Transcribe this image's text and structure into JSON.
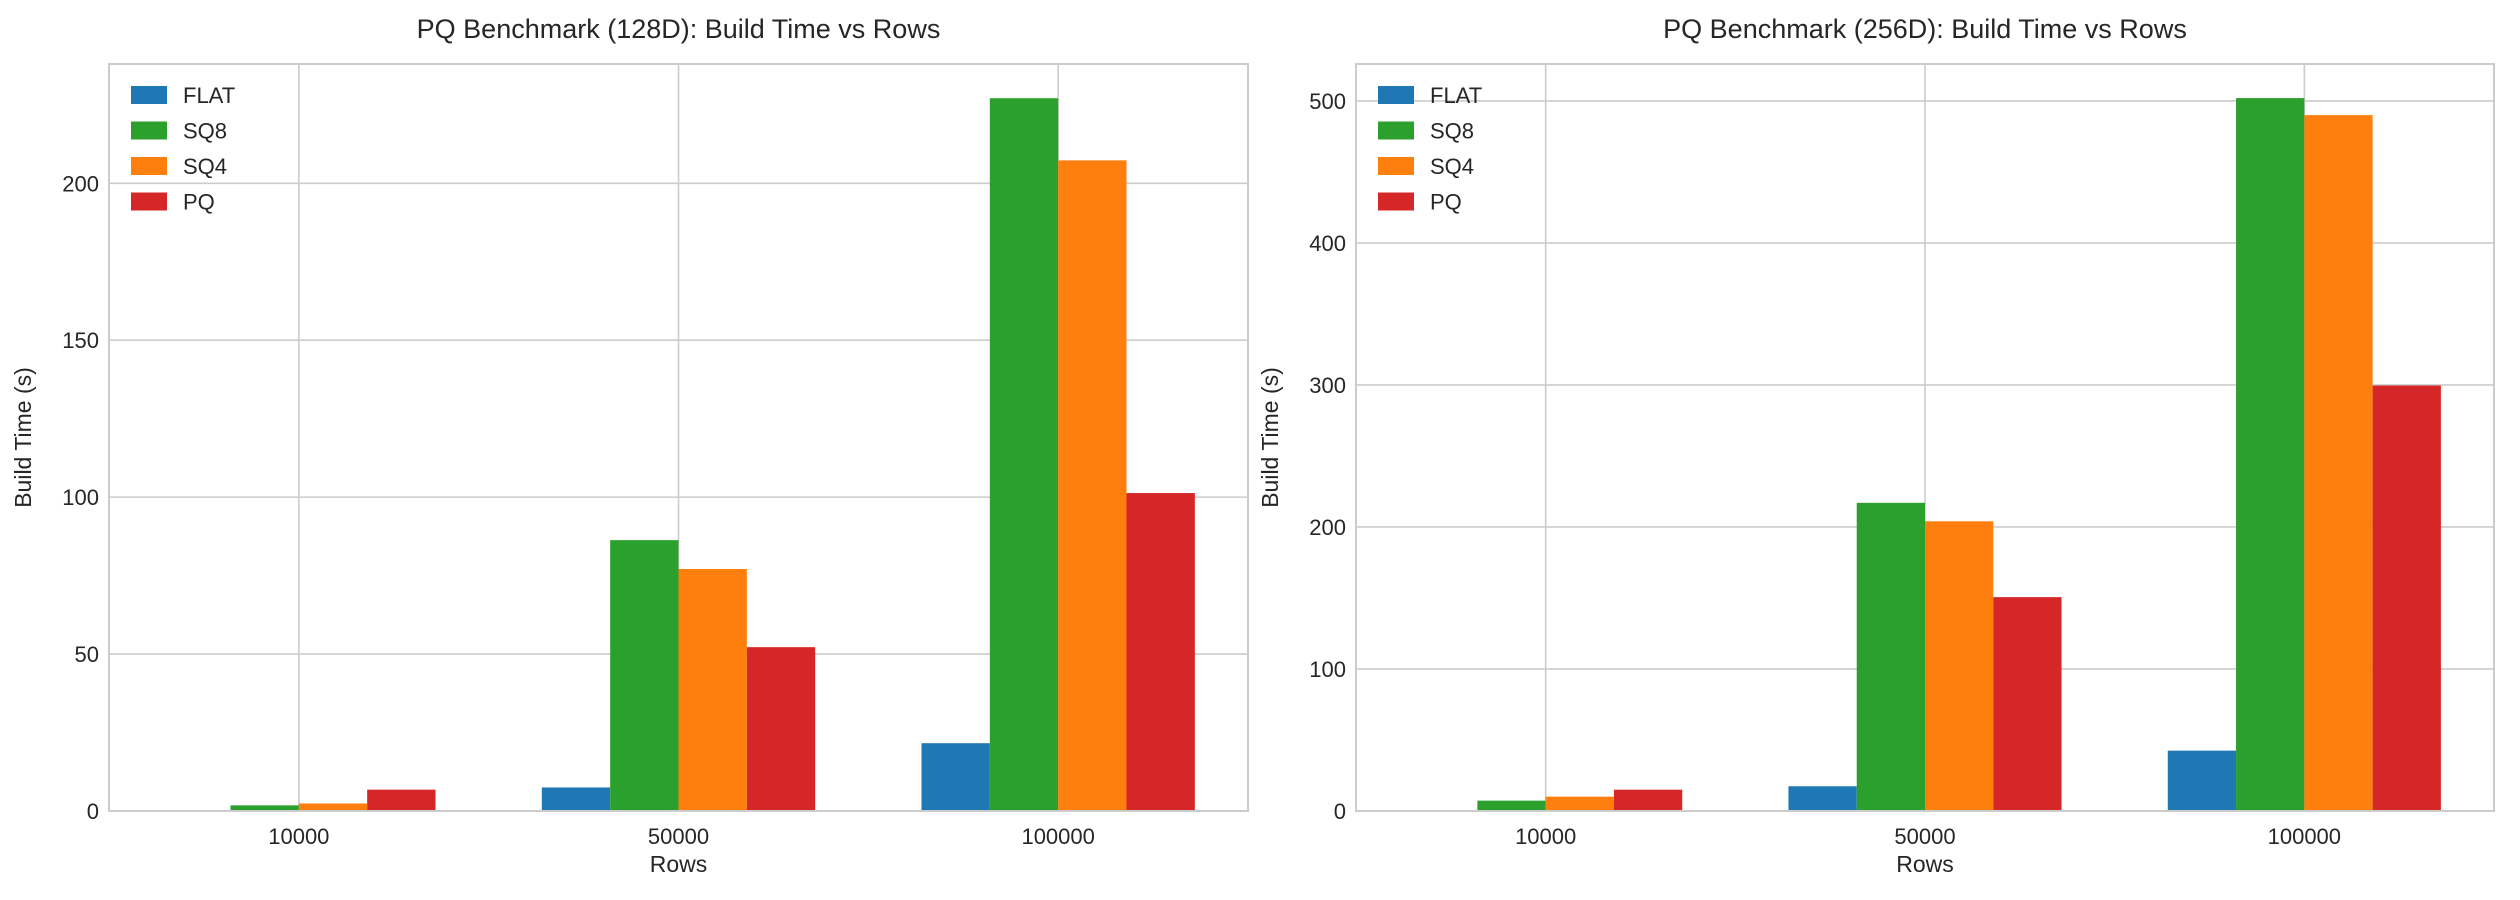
{
  "chart_data": [
    {
      "type": "bar",
      "title": "PQ Benchmark (128D): Build Time vs Rows",
      "xlabel": "Rows",
      "ylabel": "Build Time (s)",
      "categories": [
        "10000",
        "50000",
        "100000"
      ],
      "ylim": [
        0,
        238
      ],
      "yticks": [
        0,
        50,
        100,
        150,
        200
      ],
      "grid": true,
      "legend_placement": "top-left",
      "series": [
        {
          "name": "FLAT",
          "color": "#1f77b4",
          "values": [
            0.3,
            7.5,
            21.6
          ]
        },
        {
          "name": "SQ8",
          "color": "#2ca02c",
          "values": [
            1.8,
            86.3,
            227.1
          ]
        },
        {
          "name": "SQ4",
          "color": "#ff7f0e",
          "values": [
            2.4,
            77.1,
            207.3
          ]
        },
        {
          "name": "PQ",
          "color": "#d62728",
          "values": [
            6.8,
            52.2,
            101.3
          ]
        }
      ]
    },
    {
      "type": "bar",
      "title": "PQ Benchmark (256D): Build Time vs Rows",
      "xlabel": "Rows",
      "ylabel": "Build Time (s)",
      "categories": [
        "10000",
        "50000",
        "100000"
      ],
      "ylim": [
        0,
        526
      ],
      "yticks": [
        0,
        100,
        200,
        300,
        400,
        500
      ],
      "grid": true,
      "legend_placement": "top-left",
      "series": [
        {
          "name": "FLAT",
          "color": "#1f77b4",
          "values": [
            0.5,
            17.4,
            42.5
          ]
        },
        {
          "name": "SQ8",
          "color": "#2ca02c",
          "values": [
            7.3,
            217,
            502
          ]
        },
        {
          "name": "SQ4",
          "color": "#ff7f0e",
          "values": [
            10.1,
            204,
            490
          ]
        },
        {
          "name": "PQ",
          "color": "#d62728",
          "values": [
            15,
            150.6,
            299.6
          ]
        }
      ]
    }
  ]
}
